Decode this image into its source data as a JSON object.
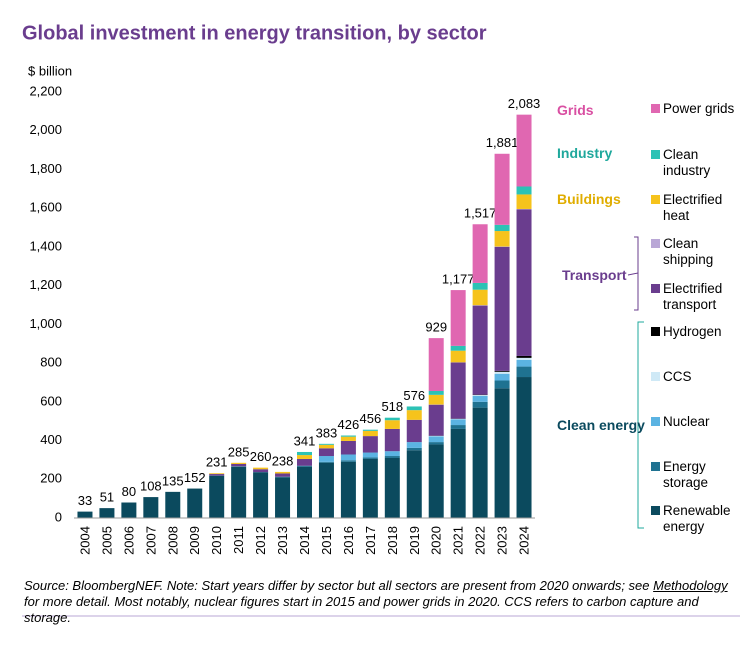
{
  "chart_data": {
    "type": "stacked_bar",
    "title": "Global investment in energy transition, by sector",
    "y_label": "$ billion",
    "categories": [
      "2004",
      "2005",
      "2006",
      "2007",
      "2008",
      "2009",
      "2010",
      "2011",
      "2012",
      "2013",
      "2014",
      "2015",
      "2016",
      "2017",
      "2018",
      "2019",
      "2020",
      "2021",
      "2022",
      "2023",
      "2024"
    ],
    "ylim": [
      0,
      2200
    ],
    "yticks": [
      0,
      {
        "value": 200,
        "label": "200"
      },
      400,
      600,
      800,
      {
        "value": 1000,
        "label": "1,000"
      },
      {
        "value": 1200,
        "label": "1,200"
      },
      {
        "value": 1400,
        "label": "1,400"
      },
      {
        "value": 1600,
        "label": "1,600"
      },
      {
        "value": 1800,
        "label": "1,800"
      },
      {
        "value": 2000,
        "label": "2,000"
      },
      {
        "value": 2200,
        "label": "2,200"
      }
    ],
    "totals": [
      33,
      51,
      80,
      108,
      135,
      152,
      231,
      285,
      260,
      238,
      341,
      383,
      426,
      456,
      518,
      576,
      929,
      1177,
      1517,
      1881,
      2083
    ],
    "total_labels": [
      "33",
      "51",
      "80",
      "108",
      "135",
      "152",
      "231",
      "285",
      "260",
      "238",
      "341",
      "383",
      "426",
      "456",
      "518",
      "576",
      "929",
      "1,177",
      "1,517",
      "1,881",
      "2,083"
    ],
    "series": [
      {
        "name": "Renewable energy",
        "color": "#0b4a5e",
        "values": [
          33,
          51,
          80,
          108,
          135,
          152,
          218,
          265,
          235,
          210,
          265,
          285,
          290,
          305,
          310,
          350,
          380,
          460,
          570,
          670,
          728
        ]
      },
      {
        "name": "Energy storage",
        "color": "#1f7291",
        "values": [
          0,
          0,
          0,
          0,
          0,
          0,
          1,
          2,
          2,
          3,
          5,
          5,
          8,
          8,
          10,
          12,
          12,
          20,
          30,
          40,
          54
        ]
      },
      {
        "name": "Nuclear",
        "color": "#5bb3e2",
        "values": [
          0,
          0,
          0,
          0,
          0,
          0,
          0,
          0,
          0,
          0,
          0,
          30,
          30,
          25,
          25,
          30,
          30,
          30,
          30,
          35,
          34
        ]
      },
      {
        "name": "CCS",
        "color": "#cfe9f6",
        "values": [
          0,
          0,
          0,
          0,
          0,
          0,
          0,
          0,
          0,
          0,
          0,
          0,
          0,
          0,
          0,
          0,
          2,
          2,
          5,
          10,
          11
        ]
      },
      {
        "name": "Hydrogen",
        "color": "#000000",
        "values": [
          0,
          0,
          0,
          0,
          0,
          0,
          0,
          0,
          0,
          0,
          0,
          0,
          0,
          0,
          0,
          0,
          1,
          1,
          2,
          5,
          10
        ]
      },
      {
        "name": "Electrified transport",
        "color": "#6a3d8e",
        "values": [
          0,
          0,
          0,
          0,
          0,
          0,
          8,
          12,
          15,
          17,
          35,
          40,
          70,
          85,
          115,
          115,
          160,
          290,
          460,
          640,
          757
        ]
      },
      {
        "name": "Clean shipping",
        "color": "#b9a7d6",
        "values": [
          0,
          0,
          0,
          0,
          0,
          0,
          0,
          0,
          0,
          0,
          0,
          0,
          0,
          0,
          0,
          0,
          1,
          1,
          2,
          2,
          2
        ]
      },
      {
        "name": "Electrified heat",
        "color": "#f6c31c",
        "values": [
          0,
          0,
          0,
          0,
          0,
          0,
          4,
          6,
          8,
          8,
          20,
          18,
          22,
          27,
          45,
          50,
          50,
          60,
          80,
          80,
          75
        ]
      },
      {
        "name": "Clean industry",
        "color": "#2cc2b5",
        "values": [
          0,
          0,
          0,
          0,
          0,
          0,
          0,
          0,
          0,
          0,
          16,
          5,
          6,
          6,
          13,
          19,
          20,
          25,
          35,
          32,
          41
        ]
      },
      {
        "name": "Power grids",
        "color": "#e067b1",
        "values": [
          0,
          0,
          0,
          0,
          0,
          0,
          0,
          0,
          0,
          0,
          0,
          0,
          0,
          0,
          0,
          0,
          273,
          288,
          303,
          367,
          371
        ]
      }
    ],
    "groups": [
      {
        "name": "Grids",
        "color": "#d94fa2"
      },
      {
        "name": "Industry",
        "color": "#1fa89c"
      },
      {
        "name": "Buildings",
        "color": "#e0ad00"
      },
      {
        "name": "Transport",
        "color": "#6a3d8e"
      },
      {
        "name": "Clean energy",
        "color": "#0b4a5e"
      }
    ],
    "source": [
      "Source: BloombergNEF. Note: Start years differ by sector but all sectors are present from 2020 onwards; see ",
      "Methodology",
      " for more detail. Most notably, nuclear figures start in 2015 and power grids in 2020. CCS refers to carbon capture and storage."
    ]
  }
}
